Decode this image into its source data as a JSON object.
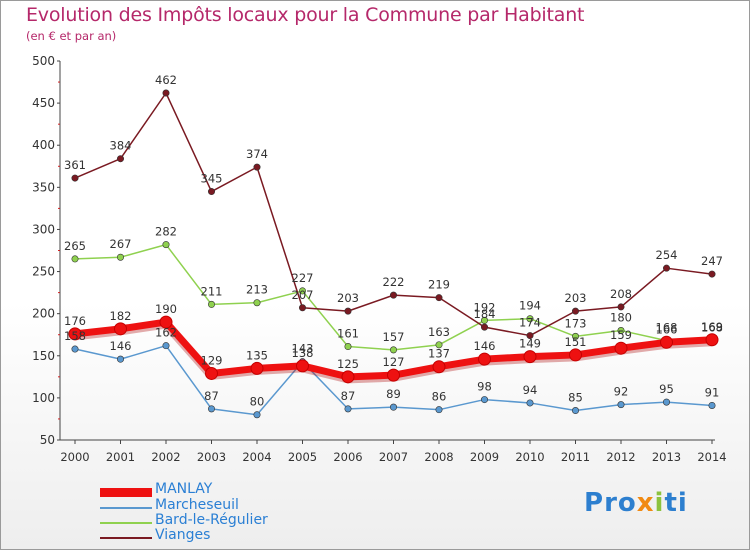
{
  "header": {
    "title": "Evolution des Impôts locaux pour la Commune par Habitant",
    "subtitle": "(en € et par an)"
  },
  "logo": {
    "text": "Proxiti"
  },
  "chart_data": {
    "type": "line",
    "x": [
      "2000",
      "2001",
      "2002",
      "2003",
      "2004",
      "2005",
      "2006",
      "2007",
      "2008",
      "2009",
      "2010",
      "2011",
      "2012",
      "2013",
      "2014"
    ],
    "ylim": [
      50,
      500
    ],
    "yticks": [
      50,
      100,
      150,
      200,
      250,
      300,
      350,
      400,
      450,
      500
    ],
    "grid": false,
    "legend": "bottom-left",
    "series": [
      {
        "name": "MANLAY",
        "color": "#ee1111",
        "values": [
          176,
          182,
          190,
          129,
          135,
          138,
          125,
          127,
          137,
          146,
          149,
          151,
          159,
          166,
          169
        ]
      },
      {
        "name": "Marcheseuil",
        "color": "#5a98cf",
        "values": [
          158,
          146,
          162,
          87,
          80,
          143,
          87,
          89,
          86,
          98,
          94,
          85,
          92,
          95,
          91
        ]
      },
      {
        "name": "Bard-le-Régulier",
        "color": "#8fd14f",
        "values": [
          265,
          267,
          282,
          211,
          213,
          227,
          161,
          157,
          163,
          192,
          194,
          173,
          180,
          168,
          168
        ]
      },
      {
        "name": "Vianges",
        "color": "#7a1a22",
        "values": [
          361,
          384,
          462,
          345,
          374,
          207,
          203,
          222,
          219,
          184,
          174,
          203,
          208,
          254,
          247
        ]
      }
    ]
  }
}
